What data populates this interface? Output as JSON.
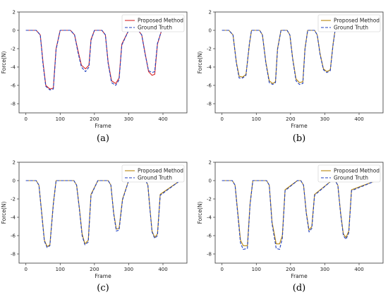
{
  "chart_data": [
    {
      "type": "line",
      "caption": "(a)",
      "xlabel": "Frame",
      "ylabel": "Force(N)",
      "xlim": [
        -20,
        470
      ],
      "ylim": [
        -9,
        2
      ],
      "xticks": [
        0,
        100,
        200,
        300,
        400
      ],
      "yticks": [
        2,
        0,
        -2,
        -4,
        -6,
        -8
      ],
      "legend_position": "top-right",
      "series": [
        {
          "name": "Proposed Method",
          "color": "#d62728",
          "style": "solid",
          "x": [
            0,
            30,
            42,
            50,
            58,
            70,
            80,
            88,
            100,
            130,
            142,
            152,
            162,
            174,
            184,
            190,
            200,
            222,
            232,
            240,
            250,
            262,
            272,
            280,
            300,
            328,
            338,
            348,
            358,
            368,
            376,
            384,
            396,
            450
          ],
          "y": [
            0,
            0,
            -0.5,
            -3.5,
            -6.0,
            -6.4,
            -6.3,
            -2.0,
            0,
            0,
            -0.5,
            -2.2,
            -3.8,
            -4.2,
            -3.8,
            -1.0,
            0,
            0,
            -0.5,
            -3.5,
            -5.5,
            -5.8,
            -5.2,
            -1.5,
            0,
            0,
            -0.5,
            -2.5,
            -4.5,
            -4.9,
            -4.8,
            -1.5,
            0,
            0
          ]
        },
        {
          "name": "Ground Truth",
          "color": "#1f3fbf",
          "style": "dashed",
          "x": [
            0,
            30,
            42,
            50,
            58,
            70,
            80,
            88,
            100,
            130,
            142,
            152,
            162,
            174,
            184,
            190,
            200,
            222,
            232,
            240,
            250,
            262,
            272,
            280,
            300,
            328,
            338,
            348,
            358,
            368,
            376,
            384,
            396,
            450
          ],
          "y": [
            0,
            0,
            -0.5,
            -3.7,
            -6.1,
            -6.5,
            -6.4,
            -2.1,
            0,
            0,
            -0.5,
            -2.4,
            -4.0,
            -4.5,
            -4.0,
            -1.1,
            0,
            0,
            -0.5,
            -3.6,
            -5.7,
            -6.0,
            -5.4,
            -1.6,
            0,
            0,
            -0.5,
            -2.6,
            -4.4,
            -4.6,
            -4.5,
            -1.4,
            0,
            0
          ]
        }
      ]
    },
    {
      "type": "line",
      "caption": "(b)",
      "xlabel": "Frame",
      "ylabel": "Force(N)",
      "xlim": [
        -20,
        470
      ],
      "ylim": [
        -9,
        2
      ],
      "xticks": [
        0,
        100,
        200,
        300,
        400
      ],
      "yticks": [
        2,
        0,
        -2,
        -4,
        -6,
        -8
      ],
      "legend_position": "top-right",
      "series": [
        {
          "name": "Proposed Method",
          "color": "#b8860b",
          "style": "solid",
          "x": [
            0,
            20,
            32,
            42,
            50,
            60,
            70,
            80,
            86,
            100,
            110,
            118,
            128,
            138,
            148,
            156,
            162,
            172,
            190,
            198,
            206,
            216,
            226,
            236,
            242,
            250,
            270,
            278,
            286,
            296,
            306,
            316,
            324,
            330,
            340,
            450
          ],
          "y": [
            0,
            0,
            -0.5,
            -3.5,
            -5.0,
            -5.1,
            -4.8,
            -1.5,
            0,
            0,
            0,
            -0.5,
            -3.5,
            -5.5,
            -5.8,
            -5.6,
            -2.0,
            0,
            0,
            -0.5,
            -3.0,
            -5.3,
            -5.7,
            -5.6,
            -2.0,
            0,
            0,
            -0.5,
            -2.5,
            -4.2,
            -4.5,
            -4.3,
            -1.5,
            0,
            0,
            0
          ]
        },
        {
          "name": "Ground Truth",
          "color": "#1f3fbf",
          "style": "dashed",
          "x": [
            0,
            20,
            32,
            42,
            50,
            60,
            70,
            80,
            86,
            100,
            110,
            118,
            128,
            138,
            148,
            156,
            162,
            172,
            190,
            198,
            206,
            216,
            226,
            236,
            242,
            250,
            270,
            278,
            286,
            296,
            306,
            316,
            324,
            330,
            340,
            450
          ],
          "y": [
            0,
            0,
            -0.5,
            -3.6,
            -5.2,
            -5.2,
            -4.9,
            -1.4,
            0,
            0,
            0,
            -0.5,
            -3.6,
            -5.7,
            -5.9,
            -5.7,
            -2.1,
            0,
            0,
            -0.5,
            -3.1,
            -5.5,
            -5.9,
            -5.8,
            -2.1,
            0,
            0,
            -0.5,
            -2.6,
            -4.3,
            -4.6,
            -4.4,
            -1.6,
            0,
            0,
            0
          ]
        }
      ]
    },
    {
      "type": "line",
      "caption": "(c)",
      "xlabel": "Frame",
      "ylabel": "Force(N)",
      "xlim": [
        -20,
        470
      ],
      "ylim": [
        -9,
        2
      ],
      "xticks": [
        0,
        100,
        200,
        300,
        400
      ],
      "yticks": [
        2,
        0,
        -2,
        -4,
        -6,
        -8
      ],
      "legend_position": "top-right",
      "series": [
        {
          "name": "Proposed Method",
          "color": "#b8860b",
          "style": "solid",
          "x": [
            0,
            30,
            38,
            46,
            54,
            62,
            70,
            80,
            88,
            110,
            140,
            148,
            156,
            164,
            172,
            182,
            190,
            210,
            240,
            248,
            256,
            264,
            272,
            282,
            300,
            350,
            356,
            362,
            368,
            376,
            384,
            392,
            450
          ],
          "y": [
            0,
            0,
            -0.5,
            -3.5,
            -6.5,
            -7.2,
            -7.0,
            -2.5,
            0,
            0,
            0,
            -0.5,
            -3.0,
            -5.8,
            -6.9,
            -6.5,
            -1.5,
            0,
            0,
            -0.5,
            -3.5,
            -5.3,
            -5.2,
            -2.0,
            0,
            0,
            -0.5,
            -3.0,
            -5.5,
            -6.2,
            -5.8,
            -1.5,
            0
          ]
        },
        {
          "name": "Ground Truth",
          "color": "#1f3fbf",
          "style": "dashed",
          "x": [
            0,
            30,
            38,
            46,
            54,
            62,
            70,
            80,
            88,
            110,
            140,
            148,
            156,
            164,
            172,
            182,
            190,
            210,
            240,
            248,
            256,
            264,
            272,
            282,
            300,
            350,
            356,
            362,
            368,
            376,
            384,
            392,
            450
          ],
          "y": [
            0,
            0,
            -0.5,
            -3.6,
            -6.6,
            -7.3,
            -7.1,
            -2.6,
            0,
            0,
            0,
            -0.5,
            -3.1,
            -6.0,
            -7.0,
            -6.7,
            -1.6,
            0,
            0,
            -0.5,
            -3.6,
            -5.5,
            -5.4,
            -2.1,
            0,
            0,
            -0.5,
            -3.1,
            -5.6,
            -6.3,
            -6.0,
            -1.6,
            0
          ]
        }
      ]
    },
    {
      "type": "line",
      "caption": "(d)",
      "xlabel": "Frame",
      "ylabel": "Force(N)",
      "xlim": [
        -20,
        470
      ],
      "ylim": [
        -9,
        2
      ],
      "xticks": [
        0,
        100,
        200,
        300,
        400
      ],
      "yticks": [
        2,
        0,
        -2,
        -4,
        -6,
        -8
      ],
      "legend_position": "top-right",
      "series": [
        {
          "name": "Proposed Method",
          "color": "#b8860b",
          "style": "solid",
          "x": [
            0,
            30,
            38,
            46,
            54,
            62,
            74,
            82,
            90,
            120,
            130,
            138,
            146,
            158,
            168,
            176,
            184,
            220,
            230,
            238,
            246,
            254,
            262,
            270,
            320,
            330,
            338,
            346,
            354,
            362,
            370,
            378,
            450
          ],
          "y": [
            0,
            0,
            -0.5,
            -3.5,
            -6.5,
            -7.1,
            -7.1,
            -2.5,
            0,
            0,
            0,
            -0.5,
            -4.5,
            -6.9,
            -6.9,
            -6.0,
            -1.0,
            0,
            0,
            -0.5,
            -3.5,
            -5.4,
            -5.0,
            -1.5,
            0,
            0,
            -0.5,
            -3.5,
            -5.8,
            -6.2,
            -5.5,
            -1.0,
            0
          ]
        },
        {
          "name": "Ground Truth",
          "color": "#1f3fbf",
          "style": "dashed",
          "x": [
            0,
            30,
            38,
            46,
            54,
            62,
            74,
            82,
            90,
            120,
            130,
            138,
            146,
            158,
            168,
            176,
            184,
            220,
            230,
            238,
            246,
            254,
            262,
            270,
            320,
            330,
            338,
            346,
            354,
            362,
            370,
            378,
            450
          ],
          "y": [
            0,
            0,
            -0.5,
            -3.7,
            -6.8,
            -7.5,
            -7.4,
            -2.6,
            0,
            0,
            0,
            -0.5,
            -4.7,
            -7.4,
            -7.5,
            -6.3,
            -1.1,
            0,
            0,
            -0.5,
            -3.6,
            -5.6,
            -5.2,
            -1.6,
            0,
            0,
            -0.5,
            -3.6,
            -6.0,
            -6.4,
            -5.7,
            -1.1,
            0
          ]
        }
      ]
    }
  ]
}
